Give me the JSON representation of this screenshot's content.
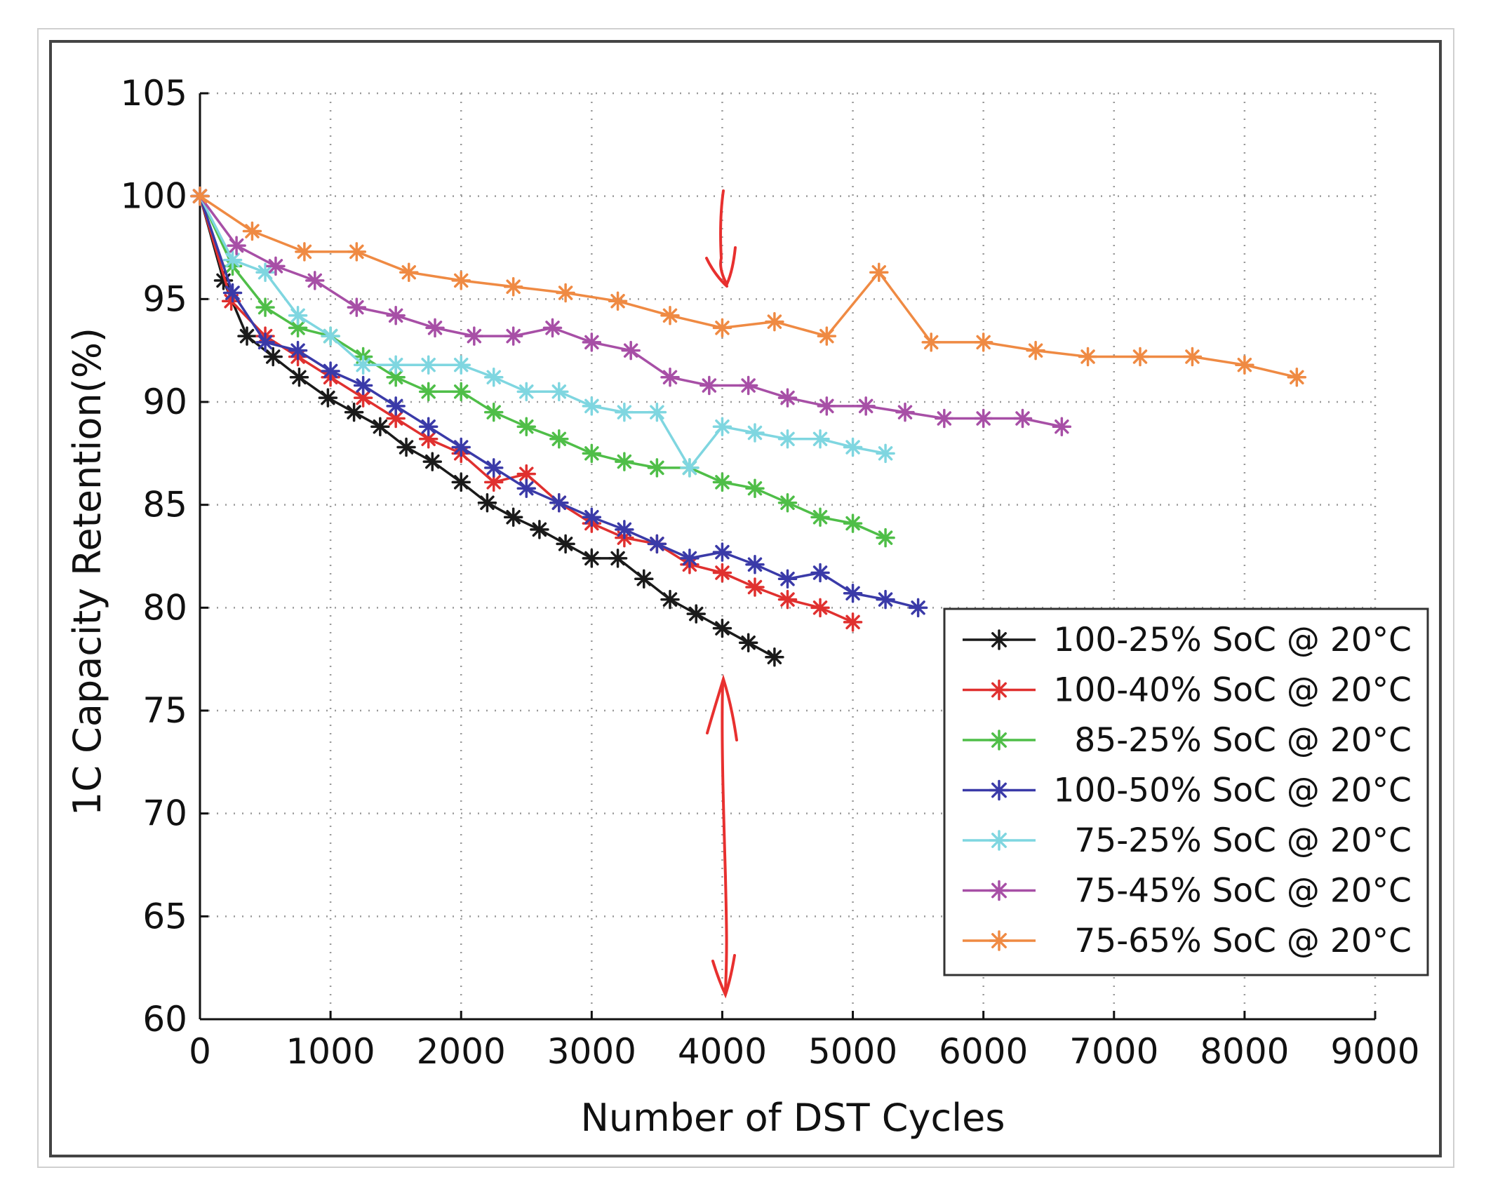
{
  "chart_data": {
    "type": "line",
    "title": "",
    "xlabel": "Number of DST Cycles",
    "ylabel": "1C Capacity Retention(%)",
    "xlim": [
      0,
      9000
    ],
    "ylim": [
      60,
      105
    ],
    "xticks": [
      0,
      1000,
      2000,
      3000,
      4000,
      5000,
      6000,
      7000,
      8000,
      9000
    ],
    "yticks": [
      60,
      65,
      70,
      75,
      80,
      85,
      90,
      95,
      100,
      105
    ],
    "grid": true,
    "legend_position": "lower-right",
    "marker": "asterisk",
    "series": [
      {
        "name": "100-25% SoC @ 20°C",
        "color": "#1a1a1a",
        "x": [
          0,
          180,
          360,
          560,
          760,
          980,
          1180,
          1380,
          1580,
          1780,
          2000,
          2200,
          2400,
          2600,
          2800,
          3000,
          3200,
          3400,
          3600,
          3800,
          4000,
          4200,
          4400
        ],
        "y": [
          100,
          95.9,
          93.2,
          92.2,
          91.2,
          90.2,
          89.5,
          88.8,
          87.8,
          87.1,
          86.1,
          85.1,
          84.4,
          83.8,
          83.1,
          82.4,
          82.4,
          81.4,
          80.4,
          79.7,
          79.0,
          78.3,
          77.6
        ]
      },
      {
        "name": "100-40% SoC @ 20°C",
        "color": "#e0302f",
        "x": [
          0,
          240,
          500,
          750,
          1000,
          1250,
          1500,
          1750,
          2000,
          2250,
          2500,
          2750,
          3000,
          3250,
          3500,
          3750,
          4000,
          4250,
          4500,
          4750,
          5000
        ],
        "y": [
          100,
          94.9,
          93.2,
          92.2,
          91.2,
          90.2,
          89.2,
          88.2,
          87.5,
          86.1,
          86.5,
          85.1,
          84.1,
          83.4,
          83.1,
          82.1,
          81.7,
          81.0,
          80.4,
          80.0,
          79.3
        ]
      },
      {
        "name": "85-25% SoC @ 20°C",
        "color": "#4fbe48",
        "x": [
          0,
          250,
          500,
          750,
          1000,
          1250,
          1500,
          1750,
          2000,
          2250,
          2500,
          2750,
          3000,
          3250,
          3500,
          3750,
          4000,
          4250,
          4500,
          4750,
          5000,
          5250
        ],
        "y": [
          100,
          96.6,
          94.6,
          93.6,
          93.2,
          92.2,
          91.2,
          90.5,
          90.5,
          89.5,
          88.8,
          88.2,
          87.5,
          87.1,
          86.8,
          86.8,
          86.1,
          85.8,
          85.1,
          84.4,
          84.1,
          83.4
        ]
      },
      {
        "name": "100-50% SoC @ 20°C",
        "color": "#3a3aa8",
        "x": [
          0,
          250,
          500,
          750,
          1000,
          1250,
          1500,
          1750,
          2000,
          2250,
          2500,
          2750,
          3000,
          3250,
          3500,
          3750,
          4000,
          4250,
          4500,
          4750,
          5000,
          5250,
          5500
        ],
        "y": [
          100,
          95.3,
          92.9,
          92.5,
          91.5,
          90.8,
          89.8,
          88.8,
          87.8,
          86.8,
          85.8,
          85.1,
          84.4,
          83.8,
          83.1,
          82.4,
          82.7,
          82.1,
          81.4,
          81.7,
          80.7,
          80.4,
          80.0
        ]
      },
      {
        "name": "75-25% SoC @ 20°C",
        "color": "#7fd6e0",
        "x": [
          0,
          250,
          500,
          750,
          1000,
          1250,
          1500,
          1750,
          2000,
          2250,
          2500,
          2750,
          3000,
          3250,
          3500,
          3750,
          4000,
          4250,
          4500,
          4750,
          5000,
          5250
        ],
        "y": [
          100,
          96.9,
          96.3,
          94.2,
          93.2,
          91.8,
          91.8,
          91.8,
          91.8,
          91.2,
          90.5,
          90.5,
          89.8,
          89.5,
          89.5,
          86.8,
          88.8,
          88.5,
          88.2,
          88.2,
          87.8,
          87.5
        ]
      },
      {
        "name": "75-45% SoC @ 20°C",
        "color": "#a74fa6",
        "x": [
          0,
          280,
          580,
          880,
          1200,
          1500,
          1800,
          2100,
          2400,
          2700,
          3000,
          3300,
          3600,
          3900,
          4200,
          4500,
          4800,
          5100,
          5400,
          5700,
          6000,
          6300,
          6600
        ],
        "y": [
          100,
          97.6,
          96.6,
          95.9,
          94.6,
          94.2,
          93.6,
          93.2,
          93.2,
          93.6,
          92.9,
          92.5,
          91.2,
          90.8,
          90.8,
          90.2,
          89.8,
          89.8,
          89.5,
          89.2,
          89.2,
          89.2,
          88.8
        ]
      },
      {
        "name": "75-65% SoC @ 20°C",
        "color": "#ef8a43",
        "x": [
          0,
          400,
          800,
          1200,
          1600,
          2000,
          2400,
          2800,
          3200,
          3600,
          4000,
          4400,
          4800,
          5200,
          5600,
          6000,
          6400,
          6800,
          7200,
          7600,
          8000,
          8400
        ],
        "y": [
          100,
          98.3,
          97.3,
          97.3,
          96.3,
          95.9,
          95.6,
          95.3,
          94.9,
          94.2,
          93.6,
          93.9,
          93.2,
          96.3,
          92.9,
          92.9,
          92.5,
          92.2,
          92.2,
          92.2,
          91.8,
          91.2
        ]
      }
    ]
  },
  "annotations": {
    "color": "#e8302f"
  }
}
